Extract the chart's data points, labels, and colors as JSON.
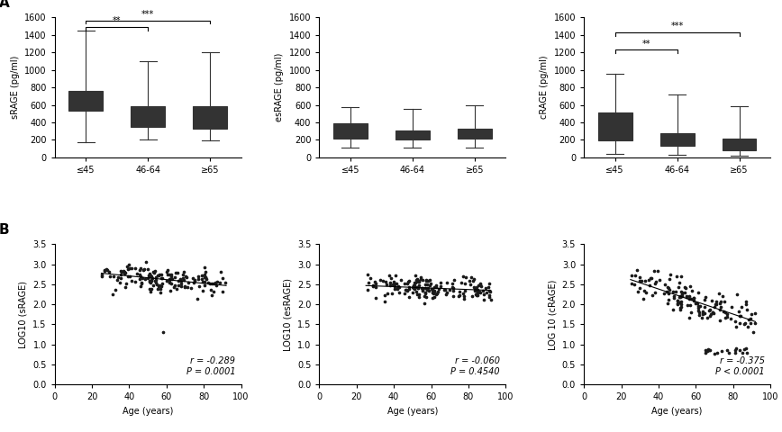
{
  "srage": {
    "ylabel": "sRAGE (pg/ml)",
    "ylim": [
      0,
      1600
    ],
    "yticks": [
      0,
      200,
      400,
      600,
      800,
      1000,
      1200,
      1400,
      1600
    ],
    "groups": [
      "≤45",
      "46-64",
      "≥65"
    ],
    "medians": [
      650,
      450,
      430
    ],
    "q1": [
      530,
      350,
      330
    ],
    "q3": [
      760,
      590,
      590
    ],
    "whislo": [
      170,
      200,
      195
    ],
    "whishi": [
      1450,
      1100,
      1200
    ],
    "sig_pairs": [
      {
        "g1": 0,
        "g2": 1,
        "label": "**",
        "y": 1490
      },
      {
        "g1": 0,
        "g2": 2,
        "label": "***",
        "y": 1565
      }
    ]
  },
  "esrage": {
    "ylabel": "esRAGE (pg/ml)",
    "ylim": [
      0,
      1600
    ],
    "yticks": [
      0,
      200,
      400,
      600,
      800,
      1000,
      1200,
      1400,
      1600
    ],
    "groups": [
      "≤45",
      "46-64",
      "≥65"
    ],
    "medians": [
      300,
      250,
      270
    ],
    "q1": [
      210,
      200,
      215
    ],
    "q3": [
      390,
      310,
      330
    ],
    "whislo": [
      110,
      115,
      115
    ],
    "whishi": [
      570,
      550,
      600
    ],
    "sig_pairs": []
  },
  "crage": {
    "ylabel": "cRAGE (pg/ml)",
    "ylim": [
      0,
      1600
    ],
    "yticks": [
      0,
      200,
      400,
      600,
      800,
      1000,
      1200,
      1400,
      1600
    ],
    "groups": [
      "≤45",
      "46-64",
      "≥65"
    ],
    "medians": [
      360,
      200,
      150
    ],
    "q1": [
      190,
      130,
      85
    ],
    "q3": [
      510,
      280,
      220
    ],
    "whislo": [
      40,
      35,
      20
    ],
    "whishi": [
      950,
      720,
      580
    ],
    "sig_pairs": [
      {
        "g1": 0,
        "g2": 1,
        "label": "**",
        "y": 1230
      },
      {
        "g1": 0,
        "g2": 2,
        "label": "***",
        "y": 1430
      }
    ]
  },
  "scatter_srage": {
    "ylabel": "LOG10 (sRAGE)",
    "xlabel": "Age (years)",
    "xlim": [
      0,
      100
    ],
    "ylim": [
      0.0,
      3.5
    ],
    "yticks": [
      0.0,
      0.5,
      1.0,
      1.5,
      2.0,
      2.5,
      3.0,
      3.5
    ],
    "xticks": [
      0,
      20,
      40,
      60,
      80,
      100
    ],
    "annotation": "r = -0.289\nP = 0.0001",
    "line_x": [
      25,
      92
    ],
    "line_y": [
      2.78,
      2.47
    ]
  },
  "scatter_esrage": {
    "ylabel": "LOG10 (esRAGE)",
    "xlabel": "Age (years)",
    "xlim": [
      0,
      100
    ],
    "ylim": [
      0.0,
      3.5
    ],
    "yticks": [
      0.0,
      0.5,
      1.0,
      1.5,
      2.0,
      2.5,
      3.0,
      3.5
    ],
    "xticks": [
      0,
      20,
      40,
      60,
      80,
      100
    ],
    "annotation": "r = -0.060\nP = 0.4540",
    "line_x": [
      25,
      92
    ],
    "line_y": [
      2.47,
      2.35
    ]
  },
  "scatter_crage": {
    "ylabel": "LOG 10 (cRAGE)",
    "xlabel": "Age (years)",
    "xlim": [
      0,
      100
    ],
    "ylim": [
      0.0,
      3.5
    ],
    "yticks": [
      0.0,
      0.5,
      1.0,
      1.5,
      2.0,
      2.5,
      3.0,
      3.5
    ],
    "xticks": [
      0,
      20,
      40,
      60,
      80,
      100
    ],
    "annotation": "r = -0.375\nP < 0.0001",
    "line_x": [
      25,
      92
    ],
    "line_y": [
      2.62,
      1.57
    ]
  },
  "box_facecolor": "#a0a0a0",
  "box_edgecolor": "#333333",
  "marker_color": "#1a1a1a",
  "label_A": "A",
  "label_B": "B"
}
